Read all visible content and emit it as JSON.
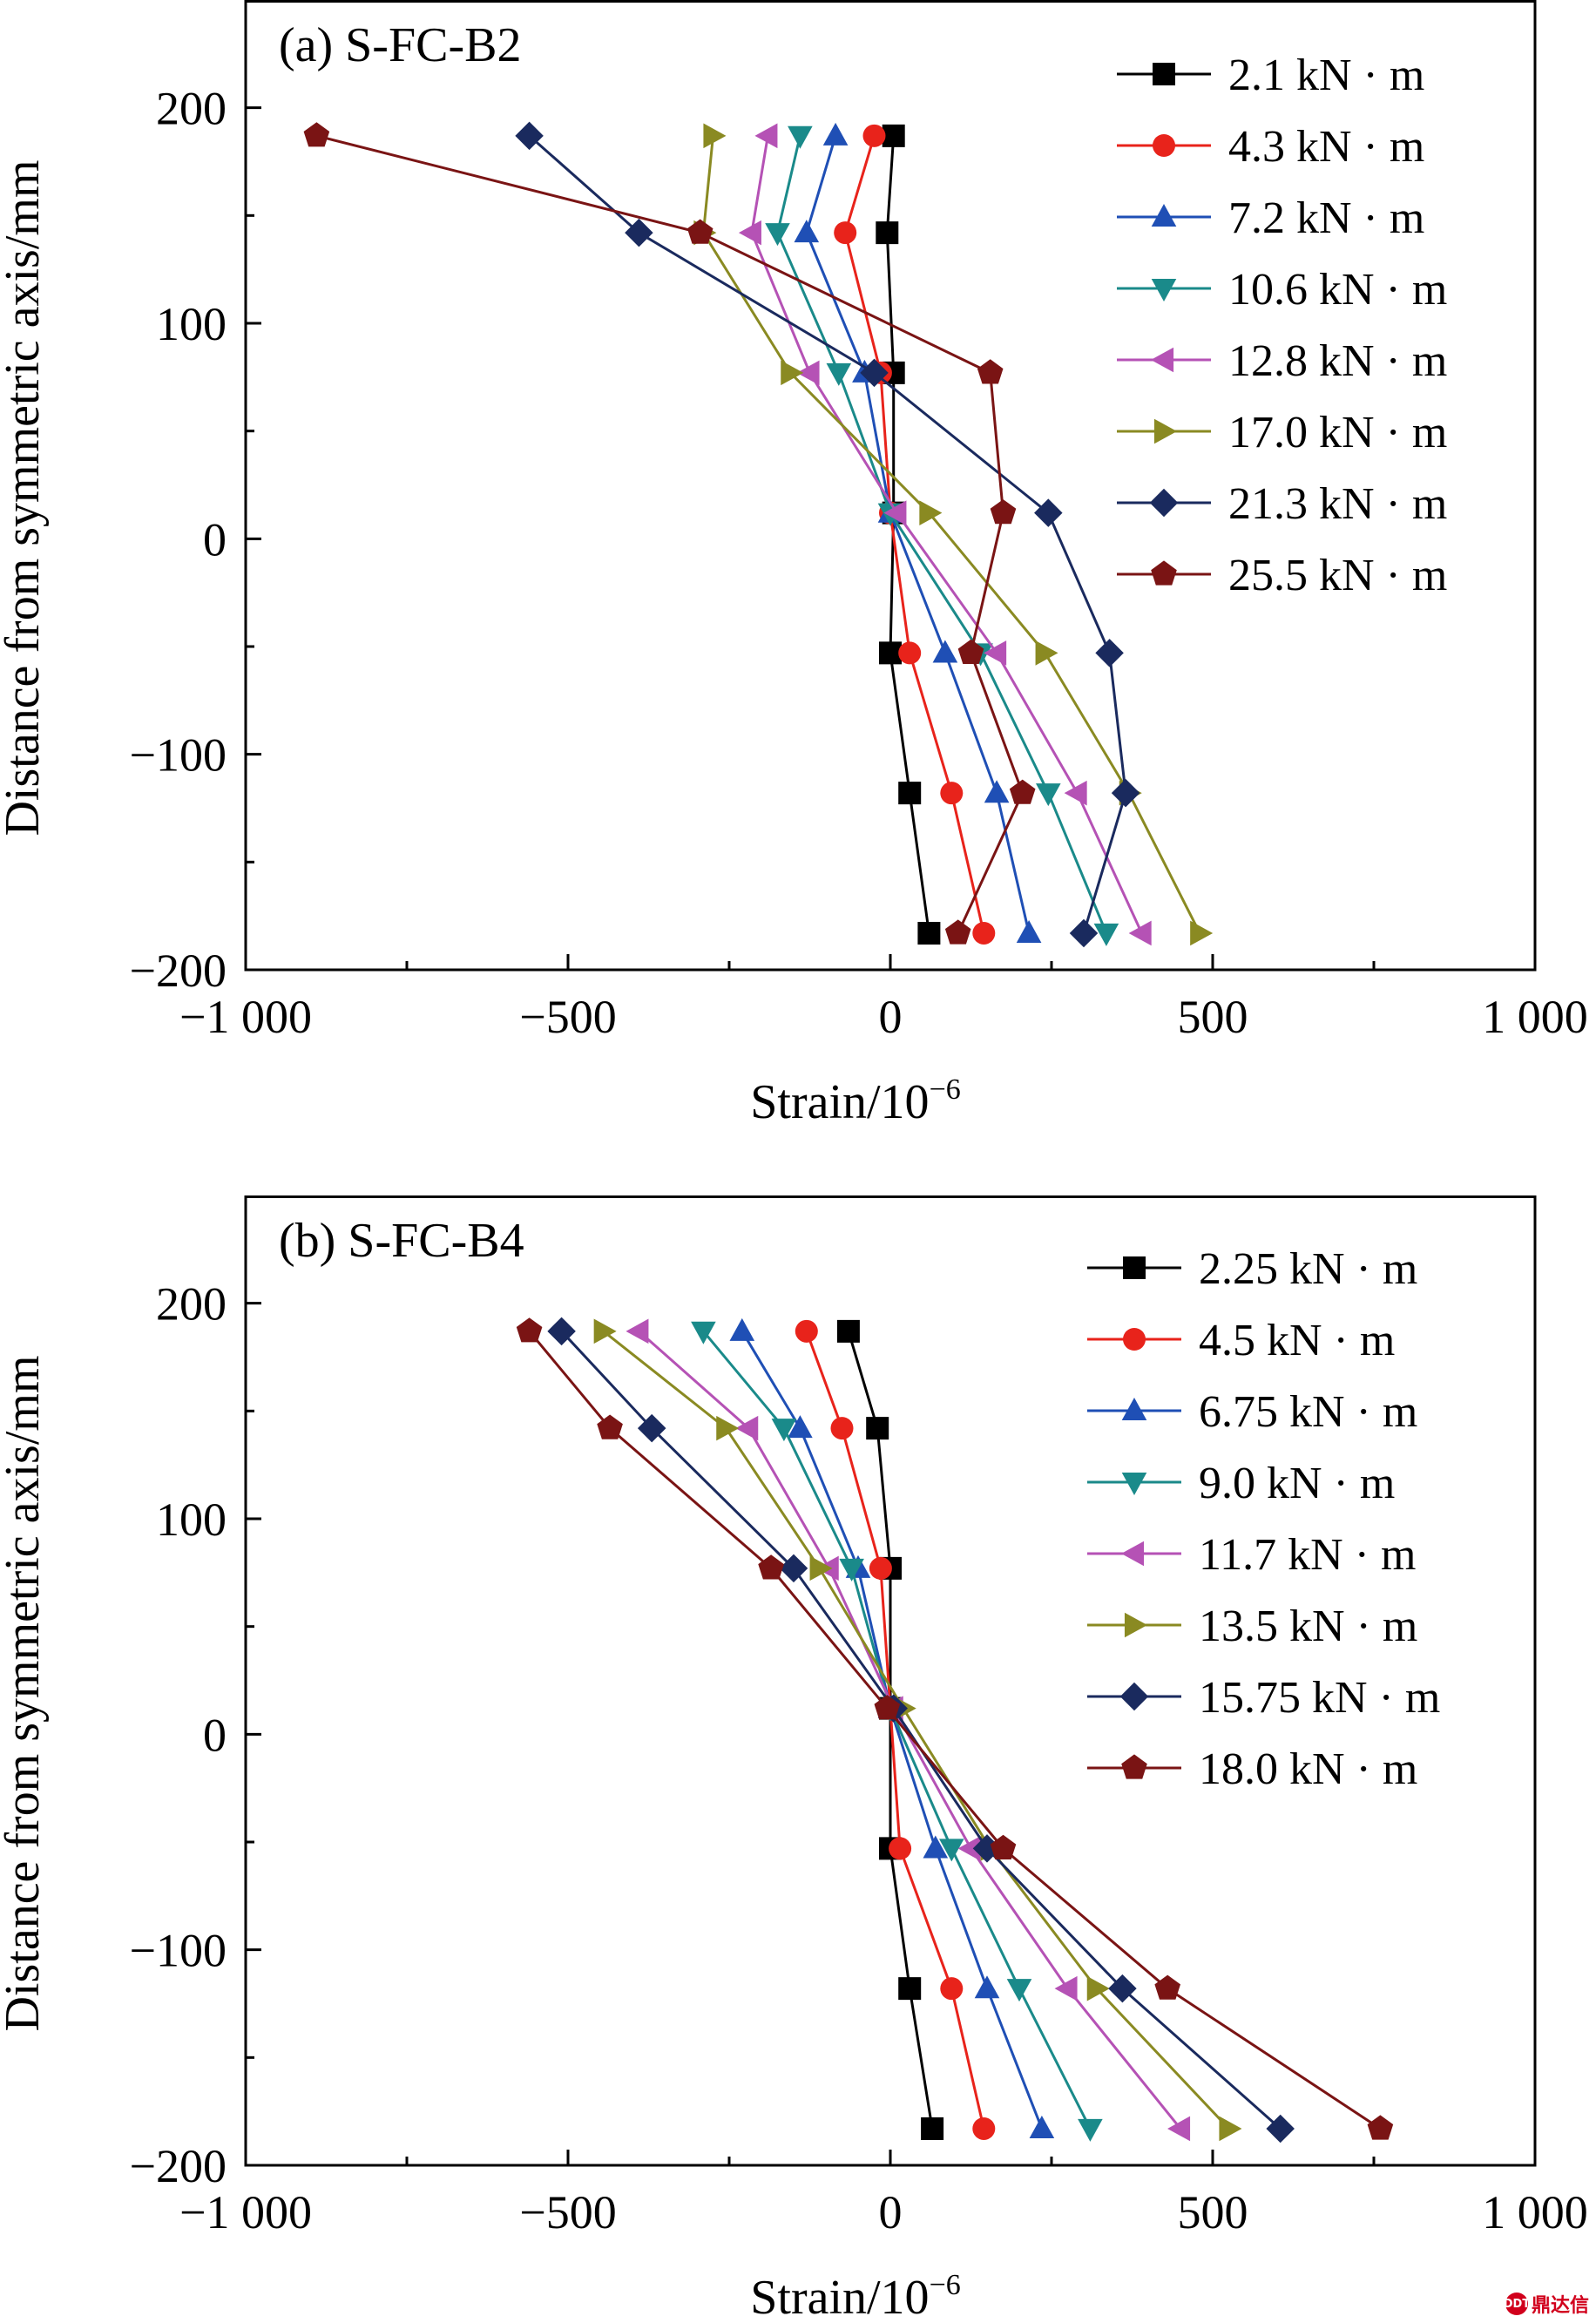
{
  "chart_data": [
    {
      "type": "line",
      "title": "(a) S-FC-B2",
      "xlabel": "Strain/10",
      "xlabel_sup": "−6",
      "ylabel": "Distance from symmetric axis/mm",
      "xlim": [
        -1000,
        1000
      ],
      "ylim": [
        -200,
        250
      ],
      "xticks": [
        -1000,
        -500,
        0,
        500,
        1000
      ],
      "xtick_labels": [
        "−1 000",
        "−500",
        "0",
        "500",
        "1 000"
      ],
      "yticks": [
        -200,
        -100,
        0,
        100,
        200
      ],
      "ytick_labels": [
        "−200",
        "−100",
        "0",
        "100",
        "200"
      ],
      "grid": false,
      "legend_position": "top-right",
      "y": [
        187,
        142,
        77,
        12,
        -53,
        -118,
        -183
      ],
      "series": [
        {
          "name": "2.1 kN · m",
          "color": "#000000",
          "marker": "square",
          "x": [
            5,
            -5,
            5,
            5,
            0,
            30,
            60
          ]
        },
        {
          "name": "4.3 kN · m",
          "color": "#e8231b",
          "marker": "circle",
          "x": [
            -25,
            -70,
            -15,
            0,
            30,
            95,
            145
          ]
        },
        {
          "name": "7.2 kN · m",
          "color": "#1f4fb5",
          "marker": "triangle-up",
          "x": [
            -85,
            -130,
            -40,
            0,
            85,
            165,
            215
          ]
        },
        {
          "name": "10.6 kN · m",
          "color": "#1a8a8a",
          "marker": "triangle-down",
          "x": [
            -140,
            -175,
            -80,
            0,
            140,
            245,
            335
          ]
        },
        {
          "name": "12.8 kN · m",
          "color": "#b552b5",
          "marker": "triangle-left",
          "x": [
            -190,
            -215,
            -125,
            10,
            165,
            290,
            390
          ]
        },
        {
          "name": "17.0 kN · m",
          "color": "#8a8a22",
          "marker": "triangle-right",
          "x": [
            -275,
            -290,
            -155,
            60,
            240,
            370,
            480
          ]
        },
        {
          "name": "21.3 kN · m",
          "color": "#1a2a5e",
          "marker": "diamond",
          "x": [
            -560,
            -390,
            -25,
            245,
            340,
            365,
            300
          ]
        },
        {
          "name": "25.5 kN · m",
          "color": "#7a1414",
          "marker": "pentagon",
          "x": [
            -890,
            -295,
            155,
            175,
            125,
            205,
            105
          ]
        }
      ]
    },
    {
      "type": "line",
      "title": "(b) S-FC-B4",
      "xlabel": "Strain/10",
      "xlabel_sup": "−6",
      "ylabel": "Distance from symmetric axis/mm",
      "xlim": [
        -1000,
        1000
      ],
      "ylim": [
        -200,
        250
      ],
      "xticks": [
        -1000,
        -500,
        0,
        500,
        1000
      ],
      "xtick_labels": [
        "−1 000",
        "−500",
        "0",
        "500",
        "1 000"
      ],
      "yticks": [
        -200,
        -100,
        0,
        100,
        200
      ],
      "ytick_labels": [
        "−200",
        "−100",
        "0",
        "100",
        "200"
      ],
      "grid": false,
      "legend_position": "top-right",
      "y": [
        187,
        142,
        77,
        12,
        -53,
        -118,
        -183
      ],
      "series": [
        {
          "name": "2.25 kN · m",
          "color": "#000000",
          "marker": "square",
          "x": [
            -65,
            -20,
            0,
            0,
            0,
            30,
            65
          ]
        },
        {
          "name": "4.5 kN · m",
          "color": "#e8231b",
          "marker": "circle",
          "x": [
            -130,
            -75,
            -15,
            0,
            15,
            95,
            145
          ]
        },
        {
          "name": "6.75 kN · m",
          "color": "#1f4fb5",
          "marker": "triangle-up",
          "x": [
            -230,
            -140,
            -50,
            0,
            70,
            150,
            235
          ]
        },
        {
          "name": "9.0 kN · m",
          "color": "#1a8a8a",
          "marker": "triangle-down",
          "x": [
            -290,
            -165,
            -60,
            0,
            95,
            200,
            310
          ]
        },
        {
          "name": "11.7 kN · m",
          "color": "#b552b5",
          "marker": "triangle-left",
          "x": [
            -390,
            -220,
            -95,
            5,
            125,
            275,
            450
          ]
        },
        {
          "name": "13.5 kN · m",
          "color": "#8a8a22",
          "marker": "triangle-right",
          "x": [
            -445,
            -255,
            -110,
            20,
            155,
            320,
            525
          ]
        },
        {
          "name": "15.75 kN · m",
          "color": "#1a2a5e",
          "marker": "diamond",
          "x": [
            -510,
            -370,
            -150,
            5,
            150,
            360,
            605
          ]
        },
        {
          "name": "18.0 kN · m",
          "color": "#7a1414",
          "marker": "pentagon",
          "x": [
            -560,
            -435,
            -185,
            -5,
            175,
            430,
            760
          ]
        }
      ]
    }
  ],
  "watermark": {
    "text": "鼎达信",
    "badge": "DDT"
  }
}
